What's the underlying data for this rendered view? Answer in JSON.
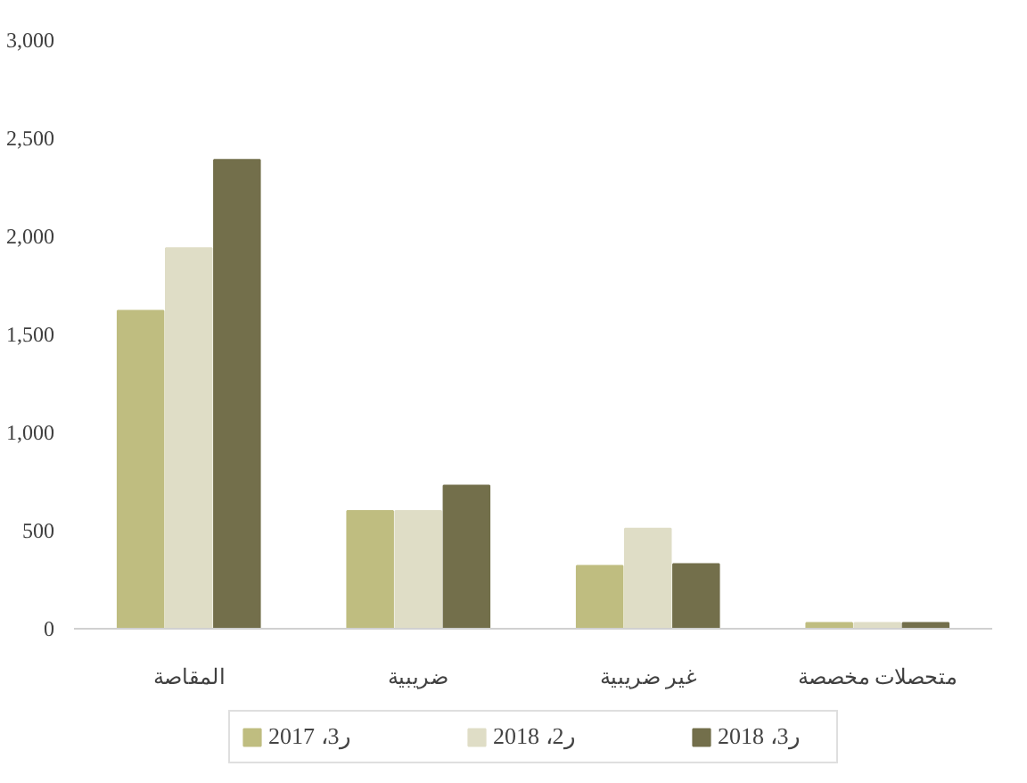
{
  "chart_data": {
    "type": "bar",
    "categories": [
      "المقاصة",
      "ضريبية",
      "غير ضريبية",
      "متحصلات مخصصة"
    ],
    "series": [
      {
        "name": "ر3، 2017",
        "color": "#bfbd80",
        "values": [
          1620,
          600,
          320,
          30
        ]
      },
      {
        "name": "ر2، 2018",
        "color": "#dfddc6",
        "values": [
          1940,
          600,
          510,
          30
        ]
      },
      {
        "name": "ر3، 2018",
        "color": "#736f4b",
        "values": [
          2390,
          730,
          330,
          30
        ]
      }
    ],
    "ylim": [
      0,
      3000
    ],
    "yticks": [
      0,
      500,
      {
        "value": 1000,
        "label": "1,000"
      },
      {
        "value": 1500,
        "label": "1,500"
      },
      {
        "value": 2000,
        "label": "2,000"
      },
      {
        "value": 2500,
        "label": "2,500"
      },
      {
        "value": 3000,
        "label": "3,000"
      }
    ],
    "grid": false,
    "legend": "bottom"
  }
}
